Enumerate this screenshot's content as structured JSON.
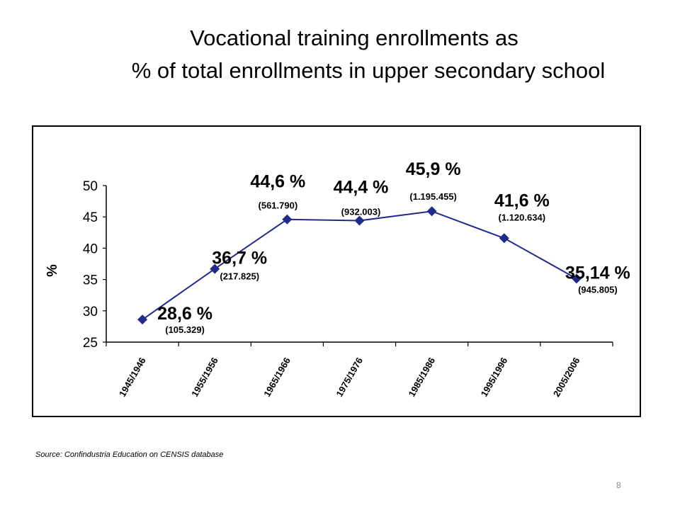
{
  "slide": {
    "title_line1": "Vocational training enrollments as",
    "title_line2": "% of total enrollments in upper secondary school",
    "source": "Source: Confindustria Education on CENSIS database",
    "page_number": "8"
  },
  "chart_data": {
    "type": "line",
    "title": "Vocational training enrollments as % of total enrollments in upper secondary school",
    "xlabel": "",
    "ylabel": "%",
    "ylim": [
      25,
      50
    ],
    "yticks": [
      25,
      30,
      35,
      40,
      45,
      50
    ],
    "grid": false,
    "legend": "none",
    "categories": [
      "1945/1946",
      "1955/1956",
      "1965/1966",
      "1975/1976",
      "1985/1986",
      "1995/1996",
      "2005/2006"
    ],
    "series": [
      {
        "values": [
          28.6,
          36.7,
          44.6,
          44.4,
          45.9,
          41.6,
          35.14
        ],
        "color": "#1f2a8a",
        "marker": "diamond"
      }
    ],
    "data_labels": [
      "28,6 %",
      "36,7 %",
      "44,6 %",
      "44,4 %",
      "45,9 %",
      "41,6 %",
      "35,14 %"
    ],
    "enrollment_counts": [
      "(105.329)",
      "(217.825)",
      "(561.790)",
      "(932.003)",
      "(1.195.455)",
      "(1.120.634)",
      "(945.805)"
    ]
  }
}
